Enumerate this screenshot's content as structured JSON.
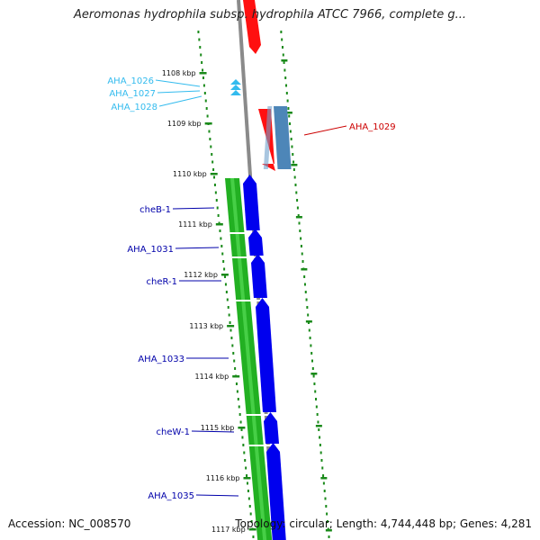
{
  "title": "Aeromonas hydrophila subsp. hydrophila ATCC 7966, complete g...",
  "footer": {
    "accession": "Accession: NC_008570",
    "summary": "Topology: circular; Length: 4,744,448 bp; Genes: 4,281"
  },
  "colors": {
    "backbone": "#8a8a8a",
    "forward_gene": "#ff1010",
    "reverse_gene": "#0000ee",
    "green_track": "#22b022",
    "steel_gene": "#4d86b8",
    "rna_marker": "#33bbee",
    "tick": "#1a8a1a"
  },
  "ticks": [
    "1108 kbp",
    "1109 kbp",
    "1110 kbp",
    "1111 kbp",
    "1112 kbp",
    "1113 kbp",
    "1114 kbp",
    "1115 kbp",
    "1116 kbp",
    "1117 kbp"
  ],
  "gene_labels": [
    {
      "name": "AHA_1026",
      "color": "#33bbee"
    },
    {
      "name": "AHA_1027",
      "color": "#33bbee"
    },
    {
      "name": "AHA_1028",
      "color": "#33bbee"
    },
    {
      "name": "AHA_1029",
      "color": "#cc0000"
    },
    {
      "name": "cheB-1",
      "color": "#0000aa"
    },
    {
      "name": "AHA_1031",
      "color": "#0000aa"
    },
    {
      "name": "cheR-1",
      "color": "#0000aa"
    },
    {
      "name": "AHA_1033",
      "color": "#0000aa"
    },
    {
      "name": "cheW-1",
      "color": "#0000aa"
    },
    {
      "name": "AHA_1035",
      "color": "#0000aa"
    }
  ]
}
